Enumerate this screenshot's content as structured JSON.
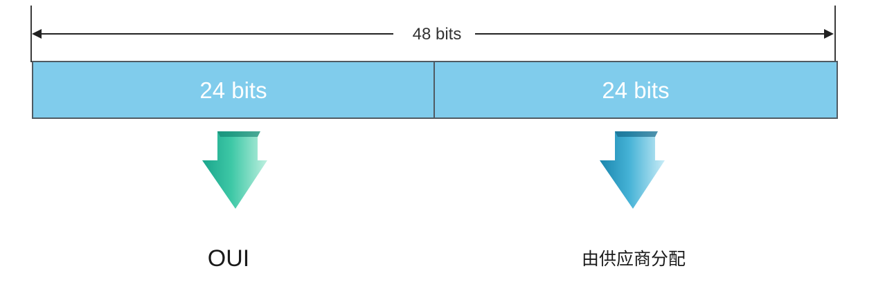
{
  "total": {
    "label": "48 bits"
  },
  "fields": [
    {
      "label": "24 bits",
      "color": "#80ccec"
    },
    {
      "label": "24 bits",
      "color": "#80ccec"
    }
  ],
  "captions": {
    "left": "OUI",
    "right": "由供应商分配"
  },
  "colors": {
    "left_arrow_dark": "#1aa58c",
    "left_arrow_light": "#bff0e0",
    "right_arrow_dark": "#1a86ad",
    "right_arrow_light": "#c9ecf7"
  }
}
